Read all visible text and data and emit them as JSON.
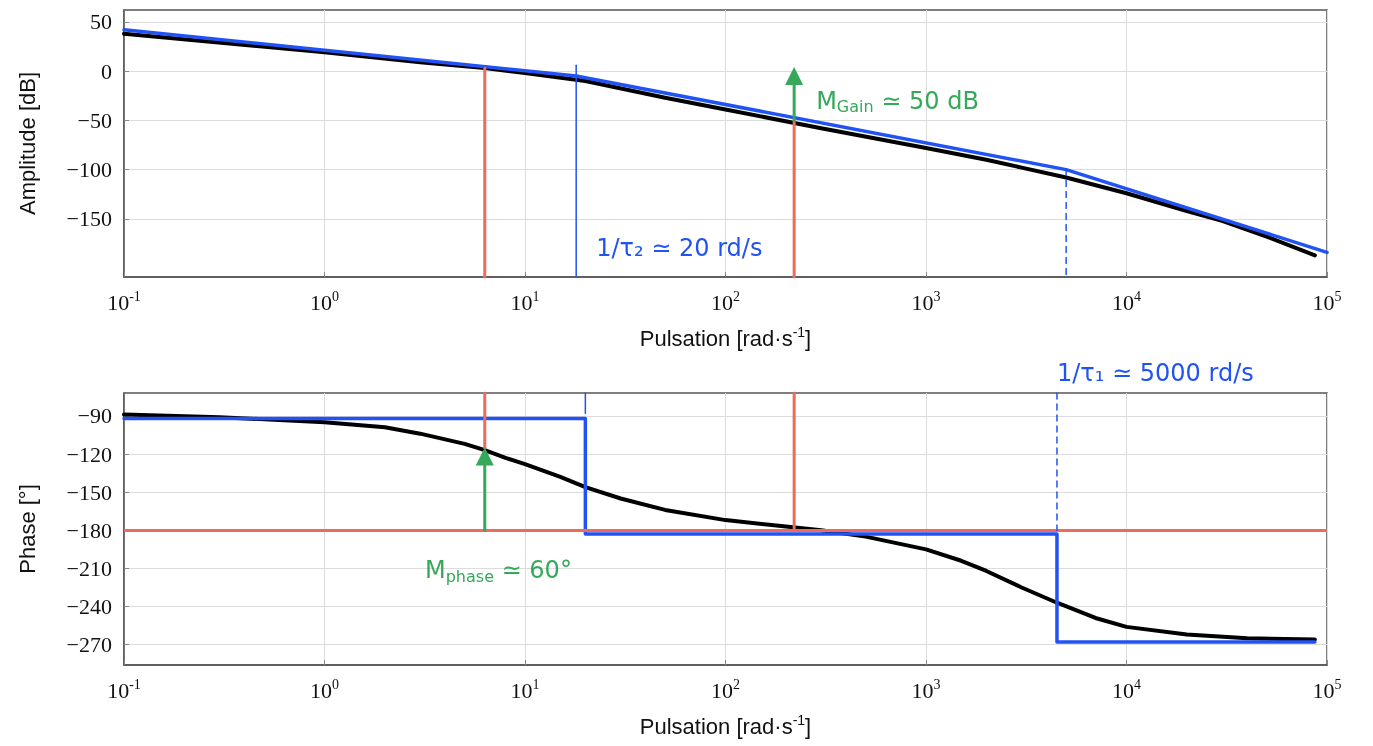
{
  "chart_data": [
    {
      "type": "line",
      "xlabel": "Pulsation [rad·s$^{-1}$]",
      "ylabel": "Amplitude [dB]",
      "log": "x",
      "grid": true,
      "xlim": [
        0.1,
        100000
      ],
      "xticks": [
        {
          "value": 0.1,
          "label": "10$^{-1}$"
        },
        {
          "value": 1,
          "label": "10$^{0}$"
        },
        {
          "value": 10,
          "label": "10$^{1}$"
        },
        {
          "value": 100,
          "label": "10$^{2}$"
        },
        {
          "value": 1000,
          "label": "10$^{3}$"
        },
        {
          "value": 10000,
          "label": "10$^{4}$"
        },
        {
          "value": 100000,
          "label": "10$^{5}$"
        }
      ],
      "ylim": [
        -209,
        62
      ],
      "yticks": [
        50,
        0,
        -50,
        -100,
        -150
      ],
      "series": [
        {
          "color": "#000000",
          "x": [
            0.1,
            1,
            3,
            6.3,
            10,
            20,
            50,
            100,
            300,
            1000,
            2000,
            3000,
            5000,
            10000,
            20000,
            30000,
            50000,
            87000
          ],
          "values": [
            38,
            19,
            9,
            3,
            -2,
            -10,
            -27,
            -39,
            -58,
            -78,
            -90,
            -98,
            -108,
            -124,
            -142,
            -152,
            -168,
            -187
          ]
        },
        {
          "color": "#2152f2",
          "x": [
            0.1,
            18,
            5000,
            100000
          ],
          "values": [
            42,
            -5,
            -100,
            -184
          ]
        },
        {
          "color": "#ee6a5a",
          "x": [
            6.3,
            6.3
          ],
          "values": [
            3,
            -209
          ]
        },
        {
          "color": "#ee6a5a",
          "x": [
            220,
            220
          ],
          "values": [
            -50,
            -209
          ]
        },
        {
          "color": "#35a85a",
          "x": [
            220,
            220
          ],
          "values": [
            -50,
            -5
          ],
          "marker": "triangle"
        },
        {
          "color": "#2152f2",
          "x": [
            18,
            18
          ],
          "values": [
            6,
            -209
          ]
        },
        {
          "color": "#2152f2",
          "x": [
            5000,
            5000
          ],
          "values": [
            -100,
            -209
          ],
          "line_style": "dashed"
        }
      ],
      "annotations": [
        {
          "text": "1/τ₂ ≃ 20 rd/s",
          "x": 18,
          "y": -180
        },
        {
          "text": "M$_{Gain}$ ≃ 50 dB",
          "x": 220,
          "y": -30
        }
      ]
    },
    {
      "type": "line",
      "xlabel": "Pulsation [rad·s$^{-1}$]",
      "ylabel": "Phase [°]",
      "log": "x",
      "grid": true,
      "xlim": [
        0.1,
        100000
      ],
      "xticks": [
        {
          "value": 0.1,
          "label": "10$^{-1}$"
        },
        {
          "value": 1,
          "label": "10$^{0}$"
        },
        {
          "value": 10,
          "label": "10$^{1}$"
        },
        {
          "value": 100,
          "label": "10$^{2}$"
        },
        {
          "value": 1000,
          "label": "10$^{3}$"
        },
        {
          "value": 10000,
          "label": "10$^{4}$"
        },
        {
          "value": 100000,
          "label": "10$^{5}$"
        }
      ],
      "ylim": [
        -286,
        -72
      ],
      "yticks": [
        -90,
        -120,
        -150,
        -180,
        -210,
        -240,
        -270
      ],
      "series": [
        {
          "color": "#000000",
          "x": [
            0.1,
            0.3,
            1,
            2,
            3,
            5,
            6.3,
            8,
            10,
            15,
            20,
            30,
            50,
            100,
            200,
            300,
            500,
            1000,
            1500,
            2000,
            3000,
            4500,
            7000,
            10000,
            20000,
            40000,
            87000
          ],
          "values": [
            -89,
            -91,
            -95,
            -99,
            -104,
            -112,
            -117,
            -123,
            -128,
            -138,
            -146,
            -155,
            -164,
            -172,
            -177,
            -180,
            -185,
            -195,
            -204,
            -212,
            -225,
            -237,
            -249,
            -256,
            -262,
            -265,
            -266
          ]
        },
        {
          "type": "step",
          "color": "#2152f2",
          "x": [
            0.1,
            20,
            4500,
            87000
          ],
          "values": [
            -92,
            -183,
            -268,
            -268
          ]
        },
        {
          "color": "#ee6a5a",
          "x": [
            6.3,
            6.3
          ],
          "values": [
            -72,
            -115
          ]
        },
        {
          "color": "#ee6a5a",
          "x": [
            220,
            220
          ],
          "values": [
            -72,
            -180
          ]
        },
        {
          "color": "#35a85a",
          "x": [
            6.3,
            6.3
          ],
          "values": [
            -180,
            -122
          ],
          "marker": "triangle"
        },
        {
          "color": "#2152f2",
          "x": [
            20,
            20
          ],
          "values": [
            -72,
            -88
          ]
        },
        {
          "color": "#2152f2",
          "x": [
            4500,
            4500
          ],
          "values": [
            -72,
            -180
          ],
          "line_style": "dashed"
        }
      ],
      "ref_lines": [
        {
          "axis": "y",
          "value": -180,
          "color": "#ee6a5a"
        }
      ],
      "annotations": [
        {
          "text": "1/τ₁ ≃ 5000 rd/s",
          "x": 4500,
          "y": -72
        },
        "M$_{phase}$ ≃ 60°"
      ]
    }
  ]
}
